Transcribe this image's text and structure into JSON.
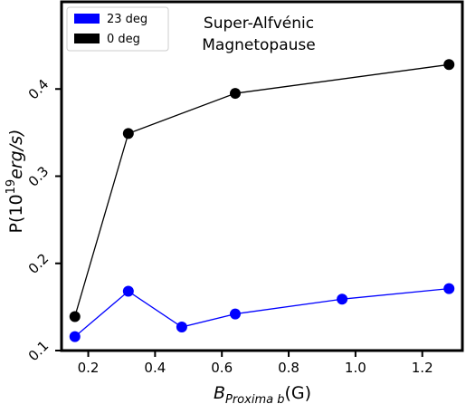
{
  "chart_data": {
    "type": "line",
    "xlabel_main": "B",
    "xlabel_sub": "Proxima b",
    "xlabel_tail": "(G)",
    "ylabel_main": "P(10",
    "ylabel_sup": "19",
    "ylabel_tail": "erg/s)",
    "annotation_line1": "Super-Alfvénic",
    "annotation_line2": "Magnetopause",
    "xlim": [
      0.12,
      1.32
    ],
    "ylim": [
      0.1,
      0.5
    ],
    "xticks": [
      0.2,
      0.4,
      0.6,
      0.8,
      1.0,
      1.2
    ],
    "xtick_labels": [
      "0.2",
      "0.4",
      "0.6",
      "0.8",
      "1.0",
      "1.2"
    ],
    "yticks": [
      0.1,
      0.2,
      0.3,
      0.4
    ],
    "ytick_labels": [
      "0.1",
      "0.2",
      "0.3",
      "0.4"
    ],
    "legend_position": "top-left",
    "series": [
      {
        "name": "23 deg",
        "color": "#0000ff",
        "x": [
          0.16,
          0.32,
          0.48,
          0.64,
          0.96,
          1.28
        ],
        "y": [
          0.116,
          0.168,
          0.127,
          0.142,
          0.159,
          0.171
        ]
      },
      {
        "name": "0 deg",
        "color": "#000000",
        "x": [
          0.16,
          0.32,
          0.64,
          1.28
        ],
        "y": [
          0.139,
          0.349,
          0.395,
          0.428
        ]
      }
    ]
  }
}
